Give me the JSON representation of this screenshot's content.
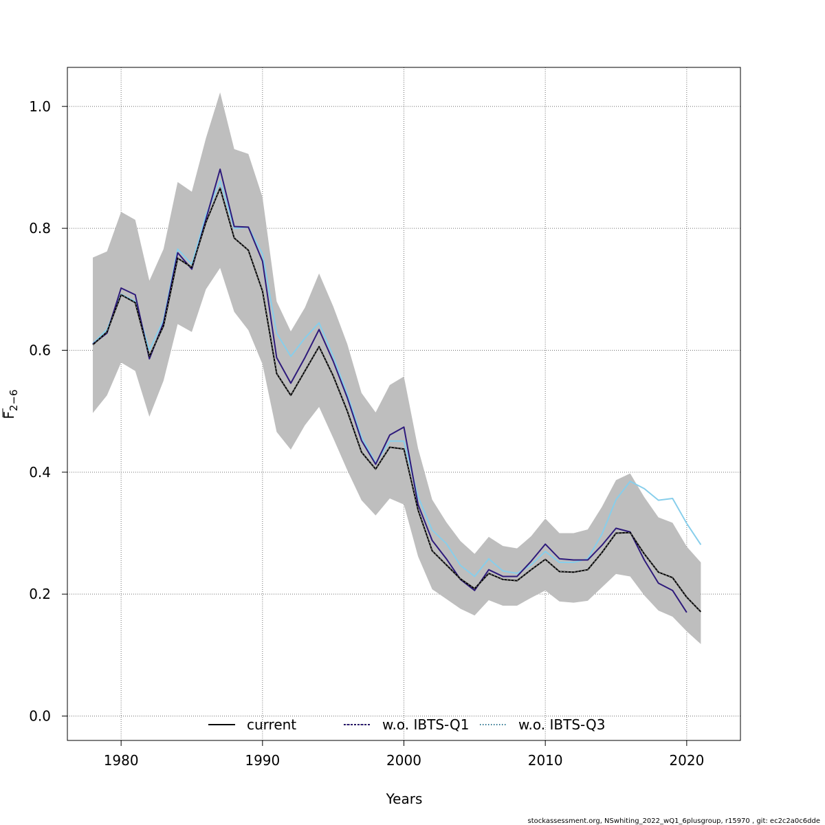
{
  "chart_data": {
    "type": "line",
    "xlabel": "Years",
    "ylabel_main": "F",
    "ylabel_sub": "2−6",
    "xlim": [
      1976.2,
      2023.8
    ],
    "ylim": [
      -0.04,
      1.064
    ],
    "xticks": [
      "1980",
      "1990",
      "2000",
      "2010",
      "2020"
    ],
    "yticks": [
      "0.0",
      "0.2",
      "0.4",
      "0.6",
      "0.8",
      "1.0"
    ],
    "grid": true,
    "legend_position": "bottom",
    "footer": "stockassessment.org, NSwhiting_2022_wQ1_6plusgroup, r15970 , git: ec2c2a0c6dde",
    "confidence_band": {
      "color": "#bebebe",
      "x": [
        1978,
        1979,
        1980,
        1981,
        1982,
        1983,
        1984,
        1985,
        1986,
        1987,
        1988,
        1989,
        1990,
        1991,
        1992,
        1993,
        1994,
        1995,
        1996,
        1997,
        1998,
        1999,
        2000,
        2001,
        2002,
        2003,
        2004,
        2005,
        2006,
        2007,
        2008,
        2009,
        2010,
        2011,
        2012,
        2013,
        2014,
        2015,
        2016,
        2017,
        2018,
        2019,
        2020,
        2021
      ],
      "lower": [
        0.497,
        0.526,
        0.58,
        0.566,
        0.491,
        0.55,
        0.643,
        0.63,
        0.7,
        0.735,
        0.663,
        0.633,
        0.577,
        0.466,
        0.437,
        0.477,
        0.507,
        0.456,
        0.403,
        0.354,
        0.329,
        0.357,
        0.347,
        0.262,
        0.208,
        0.192,
        0.176,
        0.165,
        0.19,
        0.181,
        0.181,
        0.194,
        0.206,
        0.188,
        0.186,
        0.189,
        0.211,
        0.233,
        0.229,
        0.198,
        0.173,
        0.163,
        0.139,
        0.118
      ],
      "upper": [
        0.752,
        0.762,
        0.827,
        0.814,
        0.714,
        0.766,
        0.876,
        0.86,
        0.948,
        1.023,
        0.93,
        0.922,
        0.851,
        0.68,
        0.631,
        0.67,
        0.726,
        0.672,
        0.61,
        0.53,
        0.498,
        0.543,
        0.557,
        0.439,
        0.355,
        0.318,
        0.287,
        0.266,
        0.294,
        0.279,
        0.275,
        0.295,
        0.324,
        0.3,
        0.3,
        0.306,
        0.343,
        0.387,
        0.398,
        0.359,
        0.326,
        0.317,
        0.278,
        0.252
      ]
    },
    "series": [
      {
        "name": "current",
        "color": "#000000",
        "style": "solid",
        "x": [
          1978,
          1979,
          1980,
          1981,
          1982,
          1983,
          1984,
          1985,
          1986,
          1987,
          1988,
          1989,
          1990,
          1991,
          1992,
          1993,
          1994,
          1995,
          1996,
          1997,
          1998,
          1999,
          2000,
          2001,
          2002,
          2003,
          2004,
          2005,
          2006,
          2007,
          2008,
          2009,
          2010,
          2011,
          2012,
          2013,
          2014,
          2015,
          2016,
          2017,
          2018,
          2019,
          2020,
          2021
        ],
        "y": [
          0.609,
          0.63,
          0.691,
          0.678,
          0.59,
          0.64,
          0.751,
          0.736,
          0.81,
          0.866,
          0.784,
          0.764,
          0.697,
          0.562,
          0.526,
          0.566,
          0.606,
          0.558,
          0.5,
          0.433,
          0.405,
          0.441,
          0.438,
          0.338,
          0.271,
          0.248,
          0.225,
          0.209,
          0.234,
          0.224,
          0.222,
          0.24,
          0.257,
          0.237,
          0.236,
          0.24,
          0.268,
          0.3,
          0.301,
          0.266,
          0.236,
          0.227,
          0.195,
          0.171
        ]
      },
      {
        "name": "w.o. IBTS-Q1",
        "color": "#2e1a7b",
        "style": "solid",
        "x": [
          1978,
          1979,
          1980,
          1981,
          1982,
          1983,
          1984,
          1985,
          1986,
          1987,
          1988,
          1989,
          1990,
          1991,
          1992,
          1993,
          1994,
          1995,
          1996,
          1997,
          1998,
          1999,
          2000,
          2001,
          2002,
          2003,
          2004,
          2005,
          2006,
          2007,
          2008,
          2009,
          2010,
          2011,
          2012,
          2013,
          2014,
          2015,
          2016,
          2017,
          2018,
          2019,
          2020
        ],
        "y": [
          0.61,
          0.628,
          0.702,
          0.691,
          0.586,
          0.645,
          0.76,
          0.733,
          0.815,
          0.897,
          0.803,
          0.802,
          0.746,
          0.588,
          0.546,
          0.588,
          0.634,
          0.582,
          0.522,
          0.452,
          0.413,
          0.461,
          0.474,
          0.347,
          0.288,
          0.258,
          0.224,
          0.206,
          0.24,
          0.229,
          0.229,
          0.254,
          0.282,
          0.258,
          0.256,
          0.256,
          0.28,
          0.308,
          0.302,
          0.256,
          0.218,
          0.206,
          0.17
        ]
      },
      {
        "name": "w.o. IBTS-Q3",
        "color": "#87ceeb",
        "style": "solid",
        "x": [
          1978,
          1979,
          1980,
          1981,
          1982,
          1983,
          1984,
          1985,
          1986,
          1987,
          1988,
          1989,
          1990,
          1991,
          1992,
          1993,
          1994,
          1995,
          1996,
          1997,
          1998,
          1999,
          2000,
          2001,
          2002,
          2003,
          2004,
          2005,
          2006,
          2007,
          2008,
          2009,
          2010,
          2011,
          2012,
          2013,
          2014,
          2015,
          2016,
          2017,
          2018,
          2019,
          2020,
          2021
        ],
        "y": [
          0.611,
          0.634,
          0.692,
          0.68,
          0.6,
          0.65,
          0.766,
          0.741,
          0.822,
          0.878,
          0.8,
          0.802,
          0.758,
          0.628,
          0.59,
          0.62,
          0.645,
          0.59,
          0.528,
          0.458,
          0.415,
          0.451,
          0.451,
          0.36,
          0.305,
          0.283,
          0.247,
          0.229,
          0.258,
          0.238,
          0.234,
          0.248,
          0.27,
          0.252,
          0.252,
          0.258,
          0.298,
          0.355,
          0.385,
          0.373,
          0.354,
          0.357,
          0.316,
          0.281
        ]
      }
    ],
    "legend": [
      {
        "label": "current",
        "color": "#000000",
        "line": "solid"
      },
      {
        "label": "w.o. IBTS-Q1",
        "color": "#2e1a7b",
        "line": "dashed"
      },
      {
        "label": "w.o. IBTS-Q3",
        "color": "#87ceeb",
        "line": "dotted"
      }
    ]
  }
}
